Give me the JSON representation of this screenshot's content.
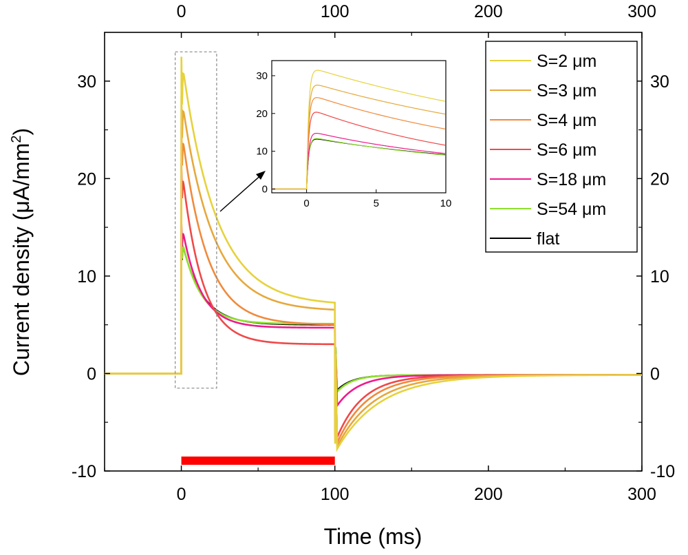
{
  "chart_data": {
    "type": "line",
    "xlabel": "Time (ms)",
    "ylabel_main": "Current density (",
    "ylabel_unit": "μA/mm",
    "ylabel_sup": "2",
    "ylabel_close": ")",
    "xlim": [
      -50,
      300
    ],
    "ylim": [
      -10,
      35
    ],
    "x_ticks": [
      0,
      100,
      200,
      300
    ],
    "y_ticks": [
      -10,
      0,
      10,
      20,
      30
    ],
    "x_tick_labels": [
      "0",
      "100",
      "200",
      "300"
    ],
    "y_tick_labels": [
      "-10",
      "0",
      "10",
      "20",
      "30"
    ],
    "stimulus": {
      "start": 0,
      "end": 100,
      "color": "#ff0000"
    },
    "zoom_box": {
      "x": [
        -4,
        23
      ],
      "y": [
        -1.5,
        33
      ]
    },
    "legend_position": "top-right",
    "series": [
      {
        "name": "S=2 μm",
        "color": "#e6d23c",
        "peak": 32.5,
        "plateau": 7.0,
        "tau": 22,
        "tail_min": -8.0,
        "tail_tau": 28
      },
      {
        "name": "S=3 μm",
        "color": "#e6a83c",
        "peak": 28.5,
        "plateau": 6.4,
        "tau": 20,
        "tail_min": -7.8,
        "tail_tau": 24
      },
      {
        "name": "S=4 μm",
        "color": "#f08a3c",
        "peak": 25.3,
        "plateau": 5.0,
        "tau": 16,
        "tail_min": -7.5,
        "tail_tau": 20
      },
      {
        "name": "S=6 μm",
        "color": "#f04848",
        "peak": 21.5,
        "plateau": 3.0,
        "tau": 13,
        "tail_min": -7.0,
        "tail_tau": 17
      },
      {
        "name": "S=18 μm",
        "color": "#ee1a8c",
        "peak": 15.5,
        "plateau": 4.7,
        "tau": 12,
        "tail_min": -3.5,
        "tail_tau": 14
      },
      {
        "name": "S=54 μm",
        "color": "#8fe02e",
        "peak": 14.0,
        "plateau": 5.1,
        "tau": 12,
        "tail_min": -2.0,
        "tail_tau": 10
      },
      {
        "name": "flat",
        "color": "#000000",
        "peak": 13.8,
        "plateau": 5.0,
        "tau": 13,
        "tail_min": -1.8,
        "tail_tau": 10
      }
    ],
    "inset": {
      "xlim": [
        -2.5,
        10
      ],
      "ylim": [
        -1,
        34
      ],
      "x_ticks": [
        0,
        5,
        10
      ],
      "y_ticks": [
        0,
        10,
        20,
        30
      ],
      "x_tick_labels": [
        "0",
        "5",
        "10"
      ],
      "y_tick_labels": [
        "0",
        "10",
        "20",
        "30"
      ]
    }
  }
}
